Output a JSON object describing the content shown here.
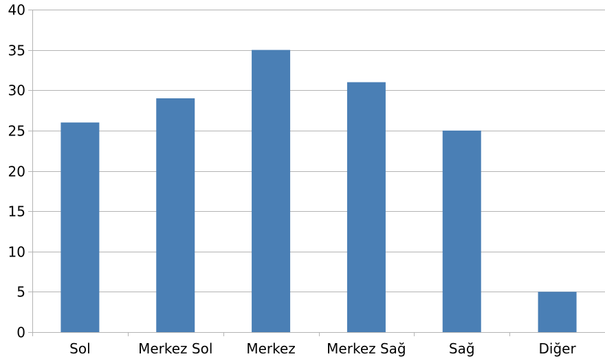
{
  "chart_data": {
    "type": "bar",
    "categories": [
      "Sol",
      "Merkez Sol",
      "Merkez",
      "Merkez Sağ",
      "Sağ",
      "Diğer"
    ],
    "values": [
      26,
      29,
      35,
      31,
      25,
      5
    ],
    "title": "",
    "xlabel": "",
    "ylabel": "",
    "ylim": [
      0,
      40
    ],
    "yticks": [
      0,
      5,
      10,
      15,
      20,
      25,
      30,
      35,
      40
    ],
    "grid": true,
    "legend": "none",
    "bar_color": "#4a7fb5",
    "grid_color": "#b3b3b3"
  }
}
